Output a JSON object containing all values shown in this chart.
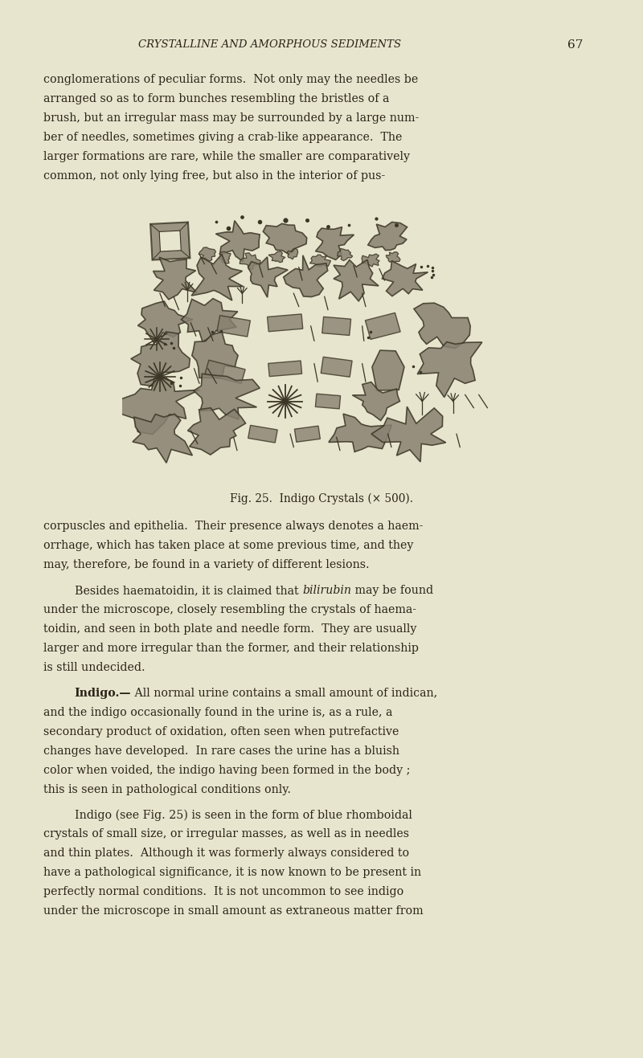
{
  "bg_color": "#e8e5ce",
  "page_width": 8.0,
  "page_height": 13.17,
  "dpi": 100,
  "header_text": "CRYSTALLINE AND AMORPHOUS SEDIMENTS",
  "page_number": "67",
  "text_color": "#2a2318",
  "crystal_color": "#3a3525",
  "crystal_fill": "#888070",
  "fig_caption": "Fig. 25.  Indigo Crystals (× 500).",
  "paragraphs": [
    "conglomerations of peculiar forms.  Not only may the needles be\narranged so as to form bunches resembling the bristles of a\nbrush, but an irregular mass may be surrounded by a large num-\nber of needles, sometimes giving a crab-like appearance.  The\nlarger formations are rare, while the smaller are comparatively\ncommon, not only lying free, but also in the interior of pus-",
    "corpuscles and epithelia.  Their presence always denotes a haem-\norrhage, which has taken place at some previous time, and they\nmay, therefore, be found in a variety of different lesions.",
    "Besides haematoidin, it is claimed that bilirubin may be found\nunder the microscope, closely resembling the crystals of haema-\ntoidin, and seen in both plate and needle form.  They are usually\nlarger and more irregular than the former, and their relationship\nis still undecided.",
    "Indigo.— All normal urine contains a small amount of indican,\nand the indigo occasionally found in the urine is, as a rule, a\nsecondary product of oxidation, often seen when putrefactive\nchanges have developed.  In rare cases the urine has a bluish\ncolor when voided, the indigo having been formed in the body ;\nthis is seen in pathological conditions only.",
    "Indigo (see Fig. 25) is seen in the form of blue rhomboidal\ncrystals of small size, or irregular masses, as well as in needles\nand thin plates.  Although it was formerly always considered to\nhave a pathological significance, it is now known to be present in\nperfectly normal conditions.  It is not uncommon to see indigo\nunder the microscope in small amount as extraneous matter from"
  ]
}
